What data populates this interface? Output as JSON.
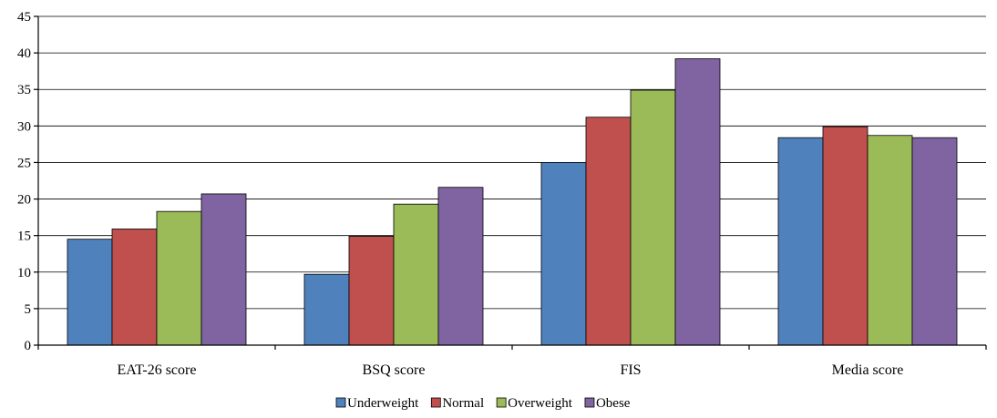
{
  "chart_data": {
    "type": "bar",
    "categories": [
      "EAT-26 score",
      "BSQ score",
      "FIS",
      "Media score"
    ],
    "series": [
      {
        "name": "Underweight",
        "color": "#4f81bd",
        "values": [
          14.5,
          9.7,
          25.0,
          28.4
        ]
      },
      {
        "name": "Normal",
        "color": "#c0504d",
        "values": [
          15.9,
          14.9,
          31.2,
          29.9
        ]
      },
      {
        "name": "Overweight",
        "color": "#9bbb59",
        "values": [
          18.3,
          19.3,
          34.9,
          28.7
        ]
      },
      {
        "name": "Obese",
        "color": "#8064a2",
        "values": [
          20.7,
          21.6,
          39.2,
          28.4
        ]
      }
    ],
    "ylim": [
      0,
      45
    ],
    "yticks": [
      0,
      5,
      10,
      15,
      20,
      25,
      30,
      35,
      40,
      45
    ],
    "grid": true,
    "legend_position": "bottom"
  }
}
